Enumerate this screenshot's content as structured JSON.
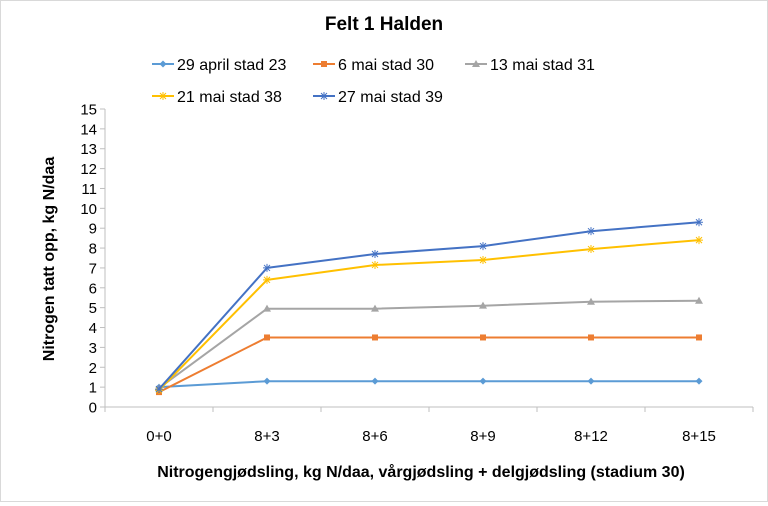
{
  "chart_data": {
    "type": "line",
    "title": "Felt 1 Halden",
    "xlabel": "Nitrogengjødsling, kg N/daa, vårgjødsling + delgjødsling (stadium 30)",
    "ylabel": "Nitrogen tatt opp, kg N/daa",
    "categories": [
      "0+0",
      "8+3",
      "8+6",
      "8+9",
      "8+12",
      "8+15"
    ],
    "ylim": [
      0,
      15
    ],
    "yticks": [
      "0",
      "1",
      "2",
      "3",
      "4",
      "5",
      "6",
      "7",
      "8",
      "9",
      "10",
      "11",
      "12",
      "13",
      "14",
      "15"
    ],
    "grid": false,
    "legend_position": "top",
    "series": [
      {
        "name": "29 april stad 23",
        "color": "#5b9bd5",
        "marker": "diamond",
        "values": [
          1.0,
          1.3,
          1.3,
          1.3,
          1.3,
          1.3
        ]
      },
      {
        "name": "6 mai stad 30",
        "color": "#ed7d31",
        "marker": "square",
        "values": [
          0.75,
          3.5,
          3.5,
          3.5,
          3.5,
          3.5
        ]
      },
      {
        "name": "13 mai stad 31",
        "color": "#a5a5a5",
        "marker": "triangle",
        "values": [
          0.95,
          4.95,
          4.95,
          5.1,
          5.3,
          5.35
        ]
      },
      {
        "name": "21 mai stad 38",
        "color": "#ffc000",
        "marker": "star",
        "values": [
          0.85,
          6.4,
          7.15,
          7.4,
          7.95,
          8.4
        ]
      },
      {
        "name": "27 mai stad 39",
        "color": "#4472c4",
        "marker": "star",
        "values": [
          0.9,
          7.0,
          7.7,
          8.1,
          8.85,
          9.3
        ]
      }
    ]
  }
}
